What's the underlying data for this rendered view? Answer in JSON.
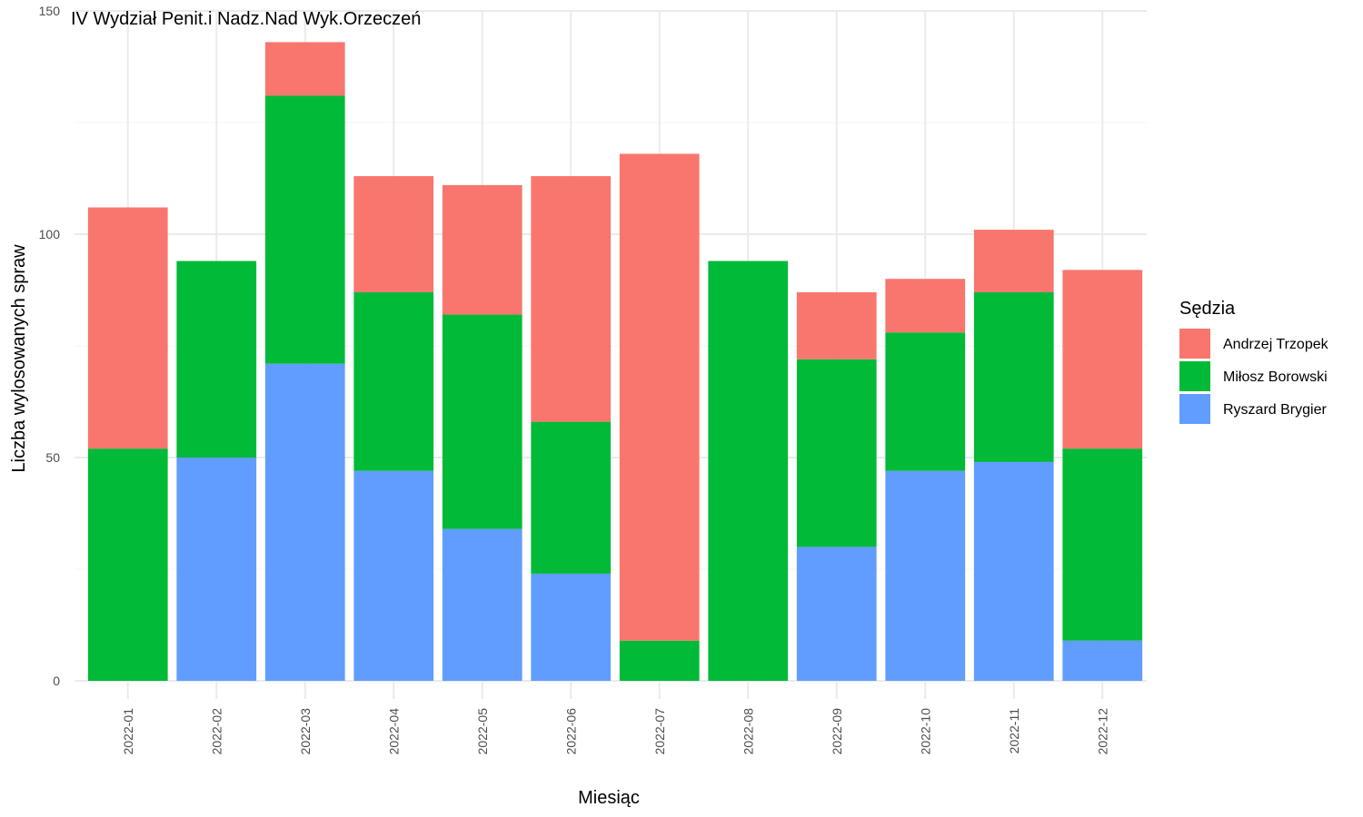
{
  "chart_data": {
    "type": "bar",
    "stacked": true,
    "title": "IV Wydział Penit.i Nadz.Nad Wyk.Orzeczeń",
    "xlabel": "Miesiąc",
    "ylabel": "Liczba wylosowanych spraw",
    "ylim": [
      0,
      150
    ],
    "yticks": [
      0,
      50,
      100,
      150
    ],
    "grid": true,
    "legend_position": "right",
    "legend_title": "Sędzia",
    "categories": [
      "2022-01",
      "2022-02",
      "2022-03",
      "2022-04",
      "2022-05",
      "2022-06",
      "2022-07",
      "2022-08",
      "2022-09",
      "2022-10",
      "2022-11",
      "2022-12"
    ],
    "series": [
      {
        "name": "Ryszard Brygier",
        "color": "#619cff",
        "values": [
          0,
          50,
          71,
          47,
          34,
          24,
          0,
          0,
          30,
          47,
          49,
          9
        ]
      },
      {
        "name": "Miłosz Borowski",
        "color": "#00ba38",
        "values": [
          52,
          44,
          60,
          40,
          48,
          34,
          9,
          94,
          42,
          31,
          38,
          43
        ]
      },
      {
        "name": "Andrzej Trzopek",
        "color": "#f8766d",
        "values": [
          54,
          0,
          12,
          26,
          29,
          55,
          109,
          0,
          15,
          12,
          14,
          40
        ]
      }
    ],
    "legend_order": [
      "Andrzej Trzopek",
      "Miłosz Borowski",
      "Ryszard Brygier"
    ]
  }
}
